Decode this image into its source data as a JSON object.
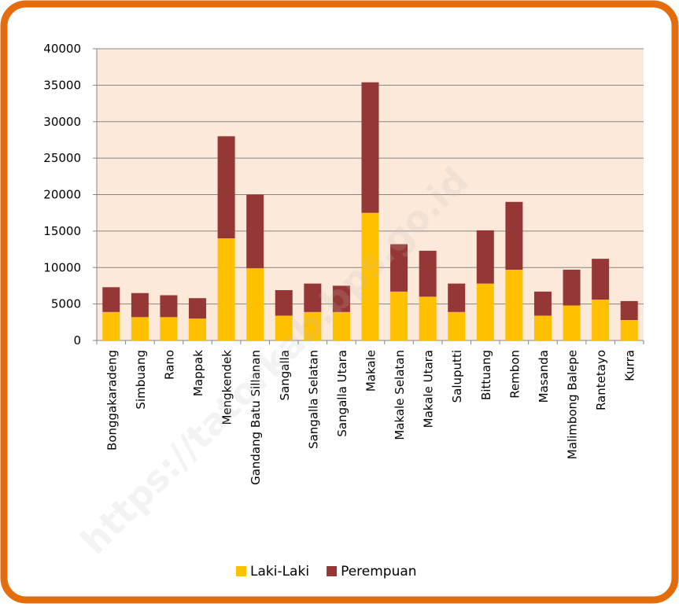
{
  "chart_data": {
    "type": "bar",
    "stacked": true,
    "categories": [
      "Bonggakaradeng",
      "Simbuang",
      "Rano",
      "Mappak",
      "Mengkendek",
      "Gandang Batu Sillanan",
      "Sangalla",
      "Sangalla Selatan",
      "Sangalla Utara",
      "Makale",
      "Makale Selatan",
      "Makale Utara",
      "Saluputti",
      "Bittuang",
      "Rembon",
      "Masanda",
      "Malimbong Balepe",
      "Rantetayo",
      "Kurra"
    ],
    "series": [
      {
        "name": "Laki-Laki",
        "color": "#ffc000",
        "values": [
          3900,
          3200,
          3200,
          3000,
          14000,
          9900,
          3400,
          3900,
          3900,
          17500,
          6700,
          6000,
          3900,
          7800,
          9700,
          3400,
          4800,
          5600,
          2800
        ]
      },
      {
        "name": "Perempuan",
        "color": "#953735",
        "values": [
          3400,
          3300,
          3000,
          2800,
          14000,
          10100,
          3500,
          3900,
          3600,
          17900,
          6500,
          6300,
          3900,
          7300,
          9300,
          3300,
          4900,
          5600,
          2600
        ]
      }
    ],
    "ylim": [
      0,
      40000
    ],
    "yticks": [
      0,
      5000,
      10000,
      15000,
      20000,
      25000,
      30000,
      35000,
      40000
    ],
    "grid": true,
    "legend": "bottom",
    "watermark": "https://tatorkab.bps.go.id"
  }
}
